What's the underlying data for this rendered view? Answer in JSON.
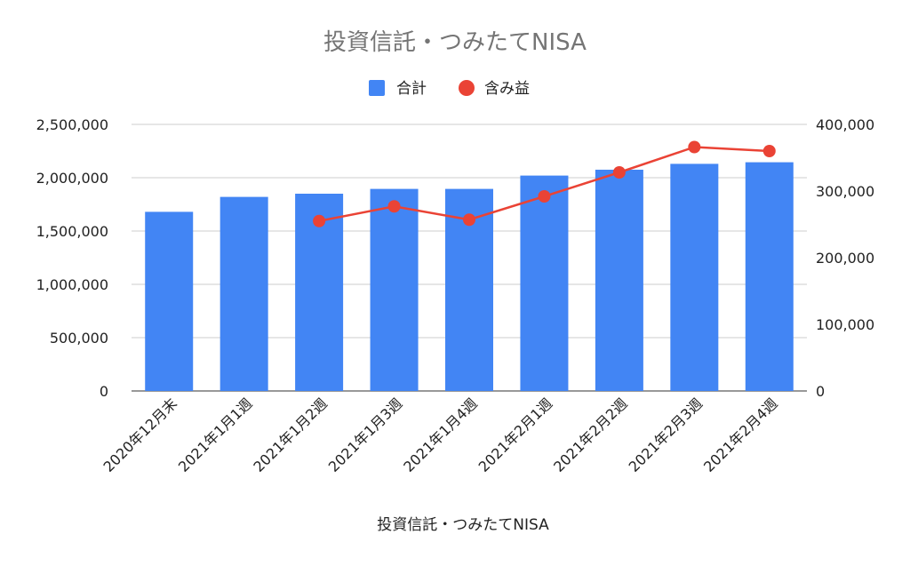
{
  "chart_data": {
    "type": "bar",
    "title": "投資信託・つみたてNISA",
    "xlabel": "投資信託・つみたてNISA",
    "legend_position": "top",
    "grid": true,
    "categories": [
      "2020年12月末",
      "2021年1月1週",
      "2021年1月2週",
      "2021年1月3週",
      "2021年1月4週",
      "2021年2月1週",
      "2021年2月2週",
      "2021年2月3週",
      "2021年2月4週"
    ],
    "series": [
      {
        "name": "合計",
        "type": "bar",
        "axis": "left",
        "color": "#4285f4",
        "values": [
          1680000,
          1820000,
          1850000,
          1895000,
          1895000,
          2020000,
          2075000,
          2130000,
          2145000
        ]
      },
      {
        "name": "含み益",
        "type": "line",
        "axis": "right",
        "color": "#ea4335",
        "values": [
          null,
          null,
          255000,
          277000,
          257000,
          292000,
          328000,
          366000,
          360000
        ]
      }
    ],
    "y_left": {
      "ylim": [
        0,
        2500000
      ],
      "ticks": [
        "0",
        "500,000",
        "1,000,000",
        "1,500,000",
        "2,000,000",
        "2,500,000"
      ]
    },
    "y_right": {
      "ylim": [
        0,
        400000
      ],
      "ticks": [
        "0",
        "100,000",
        "200,000",
        "300,000",
        "400,000"
      ]
    }
  }
}
